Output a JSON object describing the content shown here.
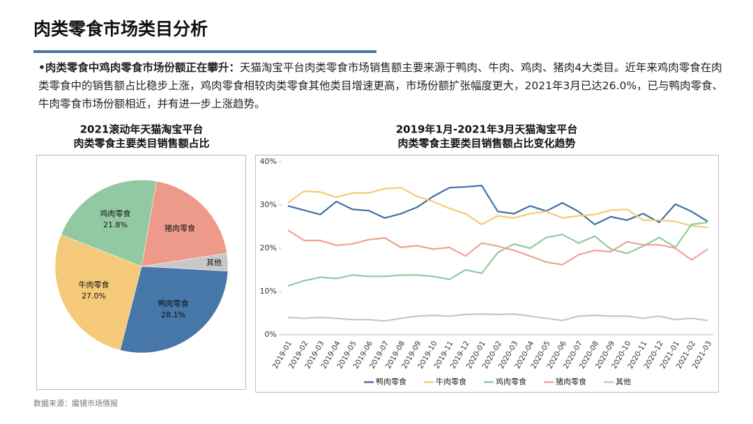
{
  "header": {
    "title": "肉类零食市场类目分析"
  },
  "paragraph": {
    "lead": "•肉类零食中鸡肉零食市场份额正在攀升：",
    "text": "天猫淘宝平台肉类零食市场销售额主要来源于鸭肉、牛肉、鸡肉、猪肉4大类目。近年来鸡肉零食在肉类零食中的销售额占比稳步上涨，鸡肉零食相较肉类零食其他类目增速更高，市场份额扩张幅度更大，2021年3月已达26.0%，已与鸭肉零食、牛肉零食市场份额相近，并有进一步上涨趋势。"
  },
  "source": "数据来源：魔镜市场情报",
  "chart_data": [
    {
      "type": "pie",
      "title": [
        "2021滚动年天猫淘宝平台",
        "肉类零食主要类目销售额占比"
      ],
      "categories": [
        "猪肉零食",
        "其他",
        "鸭肉零食",
        "牛肉零食",
        "鸡肉零食"
      ],
      "values": [
        19.8,
        3.3,
        28.1,
        27.0,
        21.8
      ],
      "value_labels": [
        null,
        null,
        "28.1%",
        "27.0%",
        "21.8%"
      ],
      "colors": [
        "#ee9a8b",
        "#c8c8c8",
        "#4677a8",
        "#f5c97a",
        "#93c9a2"
      ]
    },
    {
      "type": "line",
      "title": [
        "2019年1月-2021年3月天猫淘宝平台",
        "肉类零食主要类目销售额占比变化趋势"
      ],
      "x": [
        "2019-01",
        "2019-02",
        "2019-03",
        "2019-04",
        "2019-05",
        "2019-06",
        "2019-07",
        "2019-08",
        "2019-09",
        "2019-10",
        "2019-11",
        "2019-12",
        "2020-01",
        "2020-02",
        "2020-03",
        "2020-04",
        "2020-05",
        "2020-06",
        "2020-07",
        "2020-08",
        "2020-09",
        "2020-10",
        "2020-11",
        "2020-12",
        "2021-01",
        "2021-02",
        "2021-03"
      ],
      "ylim": [
        0,
        40
      ],
      "yticks": [
        {
          "value": 0,
          "label": "0%"
        },
        {
          "value": 10,
          "label": "10%"
        },
        {
          "value": 20,
          "label": "20%"
        },
        {
          "value": 30,
          "label": "30%"
        },
        {
          "value": 40,
          "label": "40%"
        }
      ],
      "series": [
        {
          "name": "鸭肉零食",
          "color": "#3f6fa3",
          "values": [
            29.8,
            28.8,
            27.8,
            30.8,
            29,
            28.7,
            27,
            28,
            29.5,
            32,
            34,
            34.2,
            34.5,
            28.5,
            28,
            29.8,
            28.6,
            30.5,
            28.5,
            25.5,
            27.3,
            26.5,
            28,
            26,
            30.2,
            28.5,
            26.2
          ]
        },
        {
          "name": "牛肉零食",
          "color": "#f3cc76",
          "values": [
            30.5,
            33.2,
            33,
            31.8,
            32.8,
            32.8,
            33.8,
            34,
            32,
            30.8,
            29.2,
            28,
            25.5,
            27.5,
            27,
            28,
            28.5,
            27,
            27.5,
            27.8,
            28.8,
            29,
            26.5,
            26.5,
            26.2,
            25.2,
            24.8
          ]
        },
        {
          "name": "鸡肉零食",
          "color": "#8fcb9e",
          "values": [
            11.3,
            12.5,
            13.3,
            13,
            13.8,
            13.5,
            13.5,
            13.8,
            13.8,
            13.5,
            12.8,
            15,
            14.2,
            19,
            21,
            20,
            22.5,
            23.2,
            21.2,
            22.8,
            19.8,
            18.8,
            20.5,
            22.5,
            20.2,
            25.5,
            26
          ]
        },
        {
          "name": "猪肉零食",
          "color": "#f0a195",
          "values": [
            24.2,
            21.8,
            21.8,
            20.7,
            21,
            22,
            22.4,
            20.2,
            20.6,
            19.8,
            20.2,
            18.2,
            21.2,
            20.5,
            19.5,
            18.2,
            16.8,
            16.2,
            18.5,
            19.5,
            19.2,
            21.5,
            20.8,
            20.8,
            20,
            17.3,
            19.8
          ]
        },
        {
          "name": "其他",
          "color": "#c6c6c6",
          "values": [
            4,
            3.8,
            4,
            3.8,
            3.5,
            3.5,
            3.2,
            3.8,
            4.3,
            4.5,
            4.3,
            4.7,
            4.8,
            4.7,
            4.8,
            4.3,
            3.8,
            3.3,
            4.3,
            4.5,
            4.3,
            4.3,
            3.8,
            4.3,
            3.5,
            3.8,
            3.3
          ]
        }
      ],
      "legend": "bottom"
    }
  ]
}
